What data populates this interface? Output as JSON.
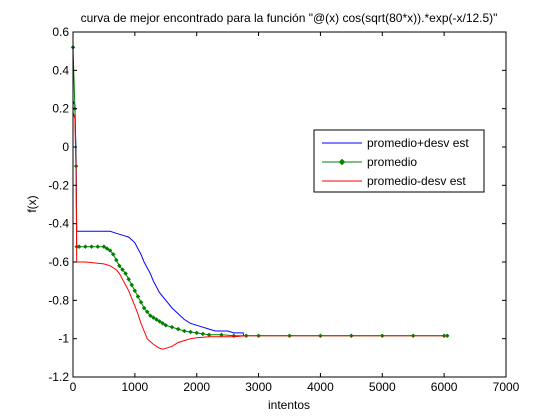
{
  "chart_data": {
    "type": "line",
    "title": "curva de mejor encontrado para la función \"@(x) cos(sqrt(80*x)).*exp(-x/12.5)\"",
    "xlabel": "intentos",
    "ylabel": "f(x)",
    "xlim": [
      0,
      7000
    ],
    "ylim": [
      -1.2,
      0.6
    ],
    "xticks": [
      0,
      1000,
      2000,
      3000,
      4000,
      5000,
      6000,
      7000
    ],
    "yticks": [
      -1.2,
      -1,
      -0.8,
      -0.6,
      -0.4,
      -0.2,
      0,
      0.2,
      0.4,
      0.6
    ],
    "xtick_labels": [
      "0",
      "1000",
      "2000",
      "3000",
      "4000",
      "5000",
      "6000",
      "7000"
    ],
    "ytick_labels": [
      "-1.2",
      "-1",
      "-0.8",
      "-0.6",
      "-0.4",
      "-0.2",
      "0",
      "0.2",
      "0.4",
      "0.6"
    ],
    "grid": false,
    "legend_position": "top-right",
    "series": [
      {
        "name": "promedio+desv est",
        "color": "#0000ff",
        "marker": "none",
        "x": [
          0,
          30,
          50,
          60,
          100,
          200,
          500,
          600,
          700,
          800,
          900,
          1000,
          1050,
          1100,
          1150,
          1200,
          1250,
          1300,
          1400,
          1500,
          1600,
          1700,
          1800,
          1900,
          2000,
          2100,
          2200,
          2300,
          2400,
          2500,
          2600,
          2700,
          2750,
          2760
        ],
        "y": [
          0.24,
          0.22,
          -0.05,
          -0.44,
          -0.44,
          -0.44,
          -0.44,
          -0.44,
          -0.45,
          -0.46,
          -0.47,
          -0.5,
          -0.53,
          -0.56,
          -0.6,
          -0.63,
          -0.66,
          -0.7,
          -0.76,
          -0.8,
          -0.84,
          -0.87,
          -0.9,
          -0.92,
          -0.93,
          -0.94,
          -0.95,
          -0.96,
          -0.96,
          -0.96,
          -0.97,
          -0.97,
          -0.97,
          -0.985
        ]
      },
      {
        "name": "promedio",
        "color": "#008000",
        "marker": "diamond",
        "x": [
          0,
          30,
          50,
          60,
          100,
          200,
          300,
          400,
          500,
          550,
          600,
          650,
          700,
          750,
          800,
          850,
          900,
          950,
          1000,
          1050,
          1100,
          1150,
          1200,
          1250,
          1300,
          1350,
          1400,
          1450,
          1500,
          1600,
          1700,
          1800,
          1900,
          2000,
          2100,
          2200,
          2400,
          2600,
          2800,
          3000,
          3500,
          4000,
          4500,
          5000,
          5500,
          6000,
          6050
        ],
        "y": [
          0.52,
          0.2,
          -0.1,
          -0.52,
          -0.52,
          -0.52,
          -0.52,
          -0.52,
          -0.52,
          -0.53,
          -0.54,
          -0.56,
          -0.59,
          -0.62,
          -0.64,
          -0.66,
          -0.69,
          -0.72,
          -0.75,
          -0.78,
          -0.81,
          -0.84,
          -0.86,
          -0.88,
          -0.89,
          -0.9,
          -0.91,
          -0.92,
          -0.93,
          -0.94,
          -0.95,
          -0.96,
          -0.965,
          -0.97,
          -0.975,
          -0.98,
          -0.98,
          -0.985,
          -0.985,
          -0.985,
          -0.985,
          -0.985,
          -0.985,
          -0.985,
          -0.985,
          -0.985,
          -0.985
        ]
      },
      {
        "name": "promedio-desv est",
        "color": "#ff0000",
        "marker": "none",
        "x": [
          0,
          30,
          50,
          60,
          100,
          200,
          500,
          600,
          700,
          750,
          800,
          850,
          900,
          950,
          1000,
          1050,
          1100,
          1150,
          1200,
          1300,
          1400,
          1450,
          1500,
          1600,
          1700,
          1800,
          1900,
          2000,
          2200,
          2400,
          2600,
          2800,
          3000,
          4000,
          5000,
          6000,
          6050
        ],
        "y": [
          0.18,
          0.15,
          -0.15,
          -0.6,
          -0.6,
          -0.6,
          -0.61,
          -0.62,
          -0.64,
          -0.66,
          -0.69,
          -0.72,
          -0.75,
          -0.79,
          -0.83,
          -0.87,
          -0.92,
          -0.96,
          -1.0,
          -1.03,
          -1.05,
          -1.055,
          -1.05,
          -1.04,
          -1.02,
          -1.01,
          -1.0,
          -0.995,
          -0.99,
          -0.99,
          -0.99,
          -0.985,
          -0.985,
          -0.985,
          -0.985,
          -0.985,
          -0.985
        ]
      }
    ]
  }
}
